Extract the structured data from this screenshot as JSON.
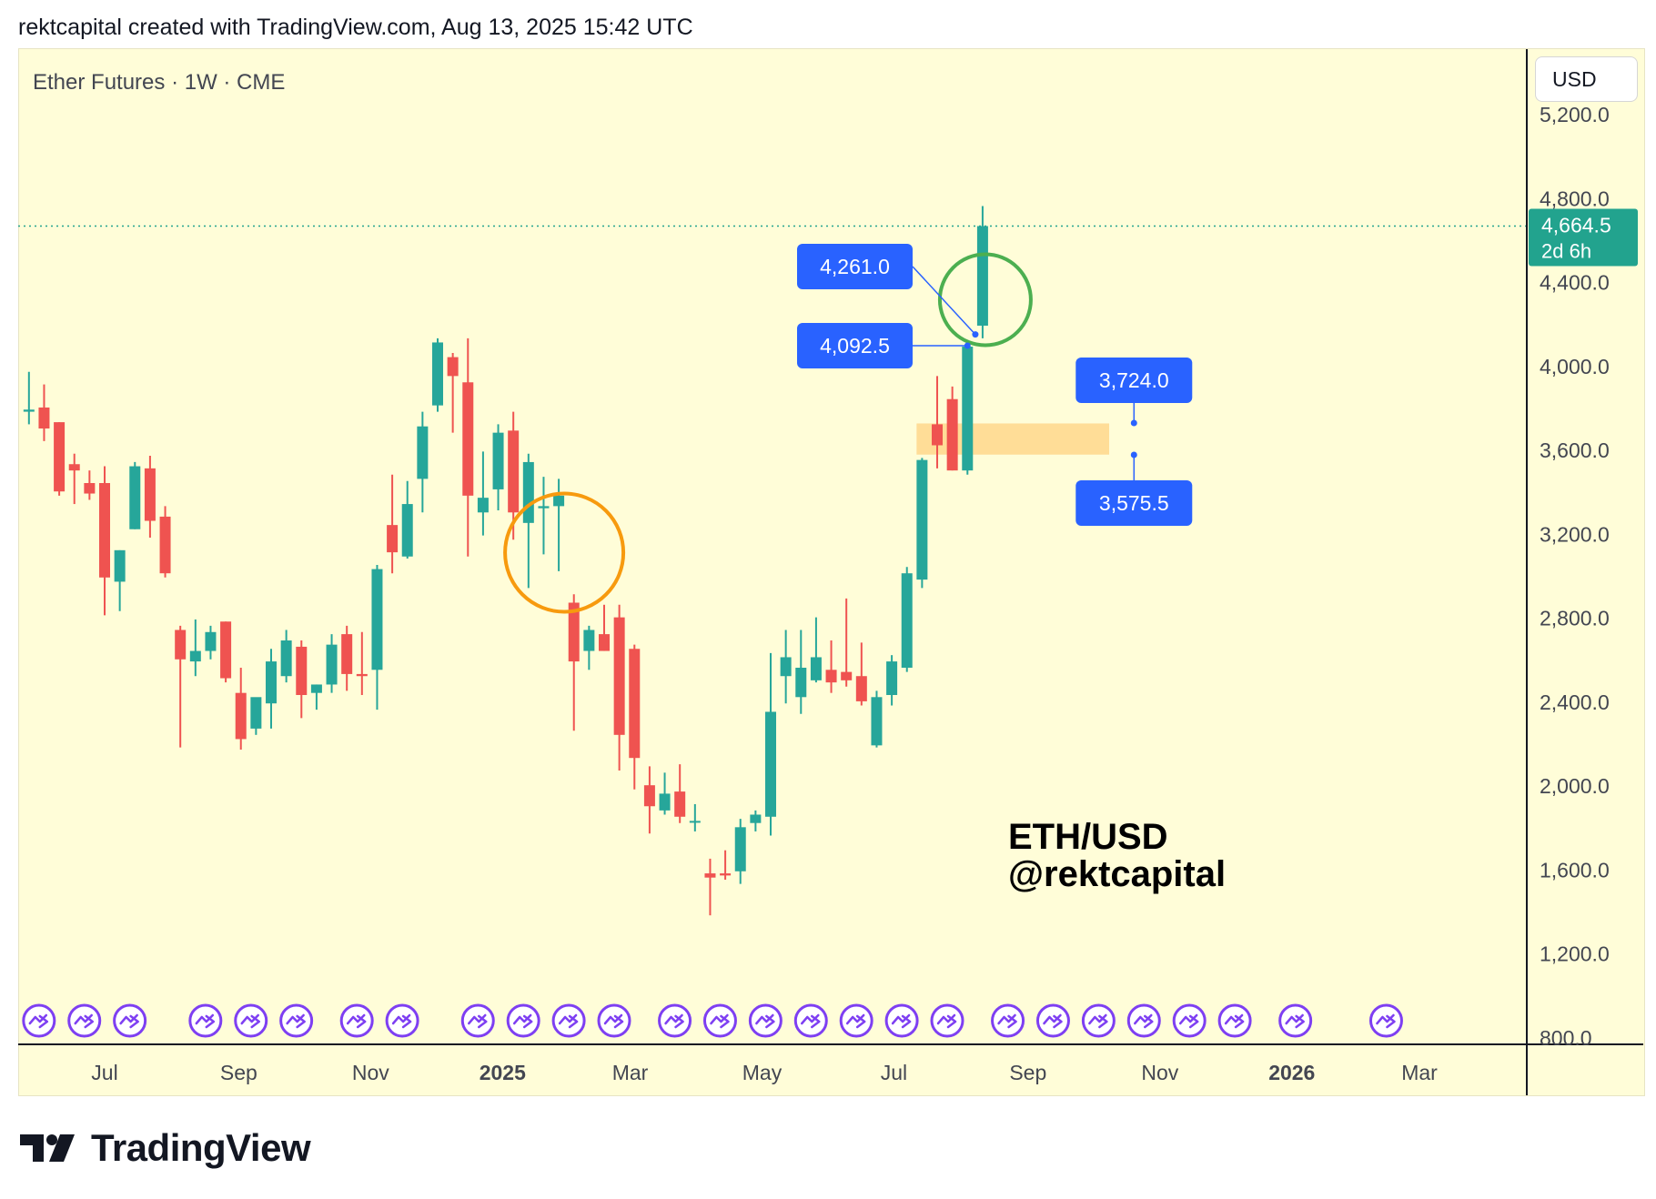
{
  "header": {
    "credit": "rektcapital created with TradingView.com, Aug 13, 2025 15:42 UTC"
  },
  "symbol": {
    "title": "Ether Futures · 1W · CME"
  },
  "currency_button": {
    "label": "USD"
  },
  "watermark": {
    "line1": "ETH/USD",
    "line2": "@rektcapital"
  },
  "brand": {
    "name": "TradingView"
  },
  "colors": {
    "up": "#26a69a",
    "down": "#ef5350",
    "label_blue": "#2962ff",
    "zone": "#ffd990",
    "circle_orange": "#f79a0e",
    "circle_green": "#4caf50",
    "price_tag": "#22a38e",
    "event_purple": "#7e3ff2",
    "background": "#fffdd8"
  },
  "chart_data": {
    "type": "candlestick",
    "y_axis": {
      "min": 800,
      "max": 5200,
      "ticks": [
        "5,200.0",
        "4,800.0",
        "4,400.0",
        "4,000.0",
        "3,600.0",
        "3,200.0",
        "2,800.0",
        "2,400.0",
        "2,000.0",
        "1,600.0",
        "1,200.0",
        "800.0"
      ]
    },
    "x_axis": {
      "ticks": [
        {
          "label": "Jul",
          "date": "2024-07-01",
          "bold": false
        },
        {
          "label": "Sep",
          "date": "2024-09-01",
          "bold": false
        },
        {
          "label": "Nov",
          "date": "2024-11-01",
          "bold": false
        },
        {
          "label": "2025",
          "date": "2025-01-01",
          "bold": true
        },
        {
          "label": "Mar",
          "date": "2025-03-01",
          "bold": false
        },
        {
          "label": "May",
          "date": "2025-05-01",
          "bold": false
        },
        {
          "label": "Jul",
          "date": "2025-07-01",
          "bold": false
        },
        {
          "label": "Sep",
          "date": "2025-09-01",
          "bold": false
        },
        {
          "label": "Nov",
          "date": "2025-11-01",
          "bold": false
        },
        {
          "label": "2026",
          "date": "2026-01-01",
          "bold": true
        },
        {
          "label": "Mar",
          "date": "2026-03-01",
          "bold": false
        }
      ]
    },
    "candles": [
      {
        "date": "2024-05-27",
        "o": 3780,
        "h": 3970,
        "l": 3720,
        "c": 3790
      },
      {
        "date": "2024-06-03",
        "o": 3800,
        "h": 3910,
        "l": 3640,
        "c": 3700
      },
      {
        "date": "2024-06-10",
        "o": 3730,
        "h": 3730,
        "l": 3380,
        "c": 3400
      },
      {
        "date": "2024-06-17",
        "o": 3530,
        "h": 3580,
        "l": 3340,
        "c": 3500
      },
      {
        "date": "2024-06-24",
        "o": 3440,
        "h": 3500,
        "l": 3360,
        "c": 3390
      },
      {
        "date": "2024-07-01",
        "o": 3440,
        "h": 3520,
        "l": 2810,
        "c": 2990
      },
      {
        "date": "2024-07-08",
        "o": 2970,
        "h": 3120,
        "l": 2830,
        "c": 3120
      },
      {
        "date": "2024-07-15",
        "o": 3220,
        "h": 3540,
        "l": 3220,
        "c": 3520
      },
      {
        "date": "2024-07-22",
        "o": 3510,
        "h": 3570,
        "l": 3180,
        "c": 3260
      },
      {
        "date": "2024-07-29",
        "o": 3280,
        "h": 3330,
        "l": 2990,
        "c": 3010
      },
      {
        "date": "2024-08-05",
        "o": 2740,
        "h": 2760,
        "l": 2180,
        "c": 2600
      },
      {
        "date": "2024-08-12",
        "o": 2590,
        "h": 2790,
        "l": 2520,
        "c": 2640
      },
      {
        "date": "2024-08-19",
        "o": 2640,
        "h": 2760,
        "l": 2600,
        "c": 2730
      },
      {
        "date": "2024-08-26",
        "o": 2780,
        "h": 2780,
        "l": 2490,
        "c": 2510
      },
      {
        "date": "2024-09-02",
        "o": 2440,
        "h": 2560,
        "l": 2170,
        "c": 2220
      },
      {
        "date": "2024-09-09",
        "o": 2270,
        "h": 2410,
        "l": 2240,
        "c": 2420
      },
      {
        "date": "2024-09-16",
        "o": 2390,
        "h": 2650,
        "l": 2270,
        "c": 2590
      },
      {
        "date": "2024-09-23",
        "o": 2520,
        "h": 2740,
        "l": 2490,
        "c": 2690
      },
      {
        "date": "2024-09-30",
        "o": 2660,
        "h": 2690,
        "l": 2320,
        "c": 2430
      },
      {
        "date": "2024-10-07",
        "o": 2440,
        "h": 2480,
        "l": 2360,
        "c": 2480
      },
      {
        "date": "2024-10-14",
        "o": 2480,
        "h": 2720,
        "l": 2440,
        "c": 2670
      },
      {
        "date": "2024-10-21",
        "o": 2720,
        "h": 2760,
        "l": 2450,
        "c": 2530
      },
      {
        "date": "2024-10-28",
        "o": 2530,
        "h": 2730,
        "l": 2430,
        "c": 2520
      },
      {
        "date": "2024-11-04",
        "o": 2550,
        "h": 3050,
        "l": 2360,
        "c": 3030
      },
      {
        "date": "2024-11-11",
        "o": 3240,
        "h": 3480,
        "l": 3010,
        "c": 3110
      },
      {
        "date": "2024-11-18",
        "o": 3090,
        "h": 3450,
        "l": 3080,
        "c": 3340
      },
      {
        "date": "2024-11-25",
        "o": 3460,
        "h": 3780,
        "l": 3300,
        "c": 3710
      },
      {
        "date": "2024-12-02",
        "o": 3810,
        "h": 4130,
        "l": 3780,
        "c": 4110
      },
      {
        "date": "2024-12-09",
        "o": 4040,
        "h": 4060,
        "l": 3680,
        "c": 3950
      },
      {
        "date": "2024-12-16",
        "o": 3920,
        "h": 4130,
        "l": 3090,
        "c": 3380
      },
      {
        "date": "2024-12-23",
        "o": 3300,
        "h": 3590,
        "l": 3190,
        "c": 3370
      },
      {
        "date": "2024-12-30",
        "o": 3410,
        "h": 3720,
        "l": 3310,
        "c": 3680
      },
      {
        "date": "2025-01-06",
        "o": 3690,
        "h": 3780,
        "l": 3170,
        "c": 3300
      },
      {
        "date": "2025-01-13",
        "o": 3250,
        "h": 3580,
        "l": 2940,
        "c": 3540
      },
      {
        "date": "2025-01-20",
        "o": 3320,
        "h": 3470,
        "l": 3100,
        "c": 3330
      },
      {
        "date": "2025-01-27",
        "o": 3330,
        "h": 3460,
        "l": 3020,
        "c": 3380
      },
      {
        "date": "2025-02-03",
        "o": 2870,
        "h": 2910,
        "l": 2260,
        "c": 2590
      },
      {
        "date": "2025-02-10",
        "o": 2640,
        "h": 2760,
        "l": 2550,
        "c": 2740
      },
      {
        "date": "2025-02-17",
        "o": 2720,
        "h": 2860,
        "l": 2640,
        "c": 2640
      },
      {
        "date": "2025-02-24",
        "o": 2800,
        "h": 2860,
        "l": 2070,
        "c": 2240
      },
      {
        "date": "2025-03-03",
        "o": 2650,
        "h": 2670,
        "l": 1980,
        "c": 2130
      },
      {
        "date": "2025-03-10",
        "o": 2000,
        "h": 2090,
        "l": 1770,
        "c": 1900
      },
      {
        "date": "2025-03-17",
        "o": 1880,
        "h": 2060,
        "l": 1860,
        "c": 1960
      },
      {
        "date": "2025-03-24",
        "o": 1970,
        "h": 2100,
        "l": 1820,
        "c": 1850
      },
      {
        "date": "2025-03-31",
        "o": 1830,
        "h": 1910,
        "l": 1780,
        "c": 1830
      },
      {
        "date": "2025-04-07",
        "o": 1580,
        "h": 1650,
        "l": 1380,
        "c": 1560
      },
      {
        "date": "2025-04-14",
        "o": 1580,
        "h": 1690,
        "l": 1550,
        "c": 1570
      },
      {
        "date": "2025-04-21",
        "o": 1590,
        "h": 1840,
        "l": 1530,
        "c": 1800
      },
      {
        "date": "2025-04-28",
        "o": 1820,
        "h": 1880,
        "l": 1780,
        "c": 1860
      },
      {
        "date": "2025-05-05",
        "o": 1850,
        "h": 2630,
        "l": 1760,
        "c": 2350
      },
      {
        "date": "2025-05-12",
        "o": 2520,
        "h": 2740,
        "l": 2390,
        "c": 2610
      },
      {
        "date": "2025-05-19",
        "o": 2420,
        "h": 2740,
        "l": 2340,
        "c": 2560
      },
      {
        "date": "2025-05-26",
        "o": 2500,
        "h": 2800,
        "l": 2490,
        "c": 2610
      },
      {
        "date": "2025-06-02",
        "o": 2550,
        "h": 2690,
        "l": 2440,
        "c": 2490
      },
      {
        "date": "2025-06-09",
        "o": 2540,
        "h": 2890,
        "l": 2470,
        "c": 2500
      },
      {
        "date": "2025-06-16",
        "o": 2520,
        "h": 2680,
        "l": 2380,
        "c": 2400
      },
      {
        "date": "2025-06-23",
        "o": 2190,
        "h": 2450,
        "l": 2180,
        "c": 2420
      },
      {
        "date": "2025-06-30",
        "o": 2430,
        "h": 2620,
        "l": 2380,
        "c": 2590
      },
      {
        "date": "2025-07-07",
        "o": 2560,
        "h": 3040,
        "l": 2540,
        "c": 3010
      },
      {
        "date": "2025-07-14",
        "o": 2980,
        "h": 3560,
        "l": 2940,
        "c": 3550
      },
      {
        "date": "2025-07-21",
        "o": 3720,
        "h": 3950,
        "l": 3510,
        "c": 3620
      },
      {
        "date": "2025-07-28",
        "o": 3840,
        "h": 3900,
        "l": 3500,
        "c": 3500
      },
      {
        "date": "2025-08-04",
        "o": 3500,
        "h": 4100,
        "l": 3480,
        "c": 4090
      },
      {
        "date": "2025-08-11",
        "o": 4190,
        "h": 4760,
        "l": 4130,
        "c": 4664.5
      }
    ],
    "last_price": {
      "value": 4664.5,
      "label": "4,664.5",
      "countdown": "2d 6h"
    },
    "price_labels": [
      {
        "text": "4,261.0",
        "value": 4261,
        "anchor_date": "2025-08-11"
      },
      {
        "text": "4,092.5",
        "value": 4092.5,
        "anchor_date": "2025-08-04"
      }
    ],
    "range_marker": {
      "top_text": "3,724.0",
      "top_value": 3724,
      "bottom_text": "3,575.5",
      "bottom_value": 3575.5,
      "date": "2025-10-20"
    },
    "support_zone": {
      "top": 3724,
      "bottom": 3575.5,
      "from": "2025-07-14",
      "to": "2025-10-06"
    },
    "circles": [
      {
        "center_date": "2025-01-27",
        "center_value": 3000,
        "color": "orange"
      },
      {
        "center_date": "2025-08-11",
        "center_value": 4140,
        "color": "green"
      }
    ],
    "events": [
      "2024-05-27",
      "2024-06-17",
      "2024-07-08",
      "2024-08-12",
      "2024-09-02",
      "2024-09-23",
      "2024-10-21",
      "2024-11-11",
      "2024-12-16",
      "2025-01-06",
      "2025-01-27",
      "2025-02-17",
      "2025-03-17",
      "2025-04-07",
      "2025-04-28",
      "2025-05-19",
      "2025-06-09",
      "2025-06-30",
      "2025-07-21",
      "2025-08-18",
      "2025-09-08",
      "2025-09-29",
      "2025-10-20",
      "2025-11-10",
      "2025-12-01",
      "2025-12-29",
      "2026-02-09"
    ]
  }
}
